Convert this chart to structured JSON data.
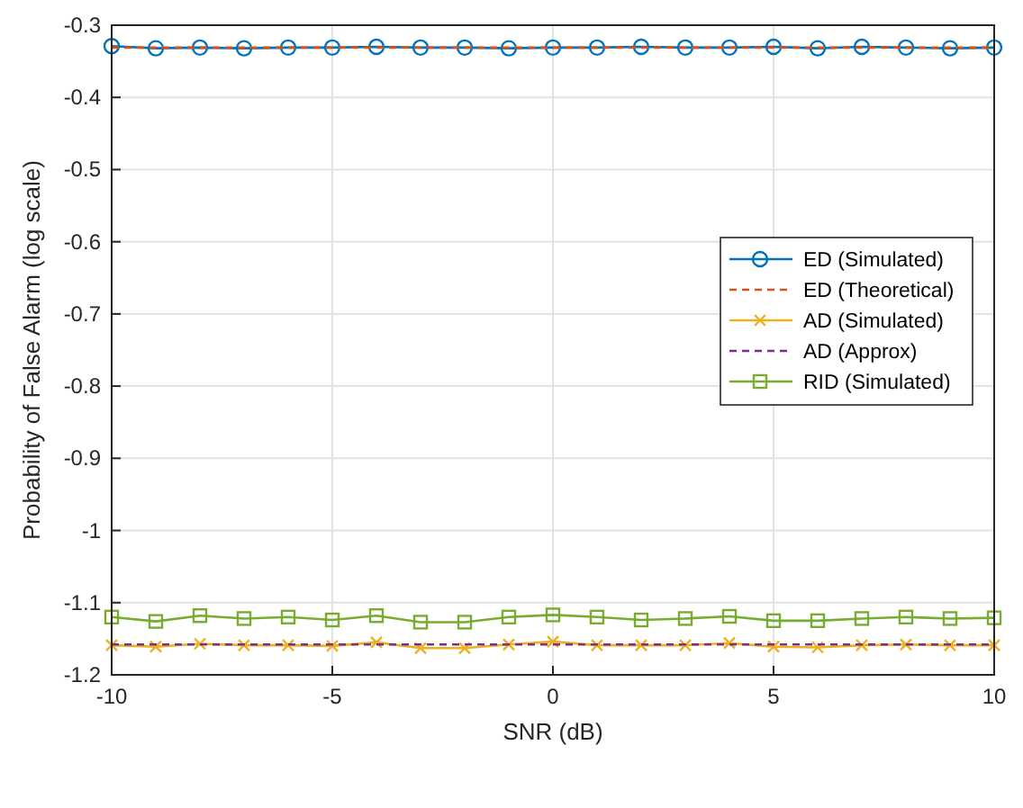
{
  "chart_data": {
    "type": "line",
    "xlabel": "SNR (dB)",
    "ylabel": "Probability of False Alarm (log scale)",
    "x": [
      -10,
      -9,
      -8,
      -7,
      -6,
      -5,
      -4,
      -3,
      -2,
      -1,
      0,
      1,
      2,
      3,
      4,
      5,
      6,
      7,
      8,
      9,
      10
    ],
    "xlim": [
      -10,
      10
    ],
    "xticks": [
      -10,
      -5,
      0,
      5,
      10
    ],
    "ylim": [
      -1.2,
      -0.3
    ],
    "yticks": [
      -1.2,
      -1.1,
      -1,
      -0.9,
      -0.8,
      -0.7,
      -0.6,
      -0.5,
      -0.4,
      -0.3
    ],
    "grid": true,
    "legend": "right",
    "series": [
      {
        "name": "ED (Simulated)",
        "color": "#0072bd",
        "marker": "circle",
        "line_style": "solid",
        "values": [
          -0.329,
          -0.332,
          -0.331,
          -0.332,
          -0.331,
          -0.331,
          -0.33,
          -0.331,
          -0.331,
          -0.332,
          -0.331,
          -0.331,
          -0.33,
          -0.331,
          -0.331,
          -0.33,
          -0.332,
          -0.33,
          -0.331,
          -0.332,
          -0.331
        ]
      },
      {
        "name": "ED (Theoretical)",
        "color": "#d95319",
        "marker": "none",
        "line_style": "dashed",
        "values": [
          -0.331,
          -0.331,
          -0.331,
          -0.331,
          -0.331,
          -0.331,
          -0.331,
          -0.331,
          -0.331,
          -0.331,
          -0.331,
          -0.331,
          -0.331,
          -0.331,
          -0.331,
          -0.331,
          -0.331,
          -0.331,
          -0.331,
          -0.331,
          -0.331
        ]
      },
      {
        "name": "AD (Simulated)",
        "color": "#edb120",
        "marker": "cross",
        "line_style": "solid",
        "values": [
          -1.159,
          -1.161,
          -1.157,
          -1.159,
          -1.159,
          -1.16,
          -1.155,
          -1.163,
          -1.163,
          -1.158,
          -1.154,
          -1.159,
          -1.159,
          -1.159,
          -1.156,
          -1.161,
          -1.162,
          -1.159,
          -1.158,
          -1.159,
          -1.159
        ]
      },
      {
        "name": "AD (Approx)",
        "color": "#7e2f8e",
        "marker": "none",
        "line_style": "dashed",
        "values": [
          -1.158,
          -1.158,
          -1.158,
          -1.158,
          -1.158,
          -1.158,
          -1.158,
          -1.158,
          -1.158,
          -1.158,
          -1.158,
          -1.158,
          -1.158,
          -1.158,
          -1.158,
          -1.158,
          -1.158,
          -1.158,
          -1.158,
          -1.158,
          -1.158
        ]
      },
      {
        "name": "RID (Simulated)",
        "color": "#77ac30",
        "marker": "square",
        "line_style": "solid",
        "values": [
          -1.12,
          -1.126,
          -1.118,
          -1.122,
          -1.12,
          -1.124,
          -1.118,
          -1.127,
          -1.127,
          -1.12,
          -1.117,
          -1.12,
          -1.124,
          -1.122,
          -1.119,
          -1.125,
          -1.125,
          -1.122,
          -1.12,
          -1.122,
          -1.121
        ]
      }
    ]
  }
}
